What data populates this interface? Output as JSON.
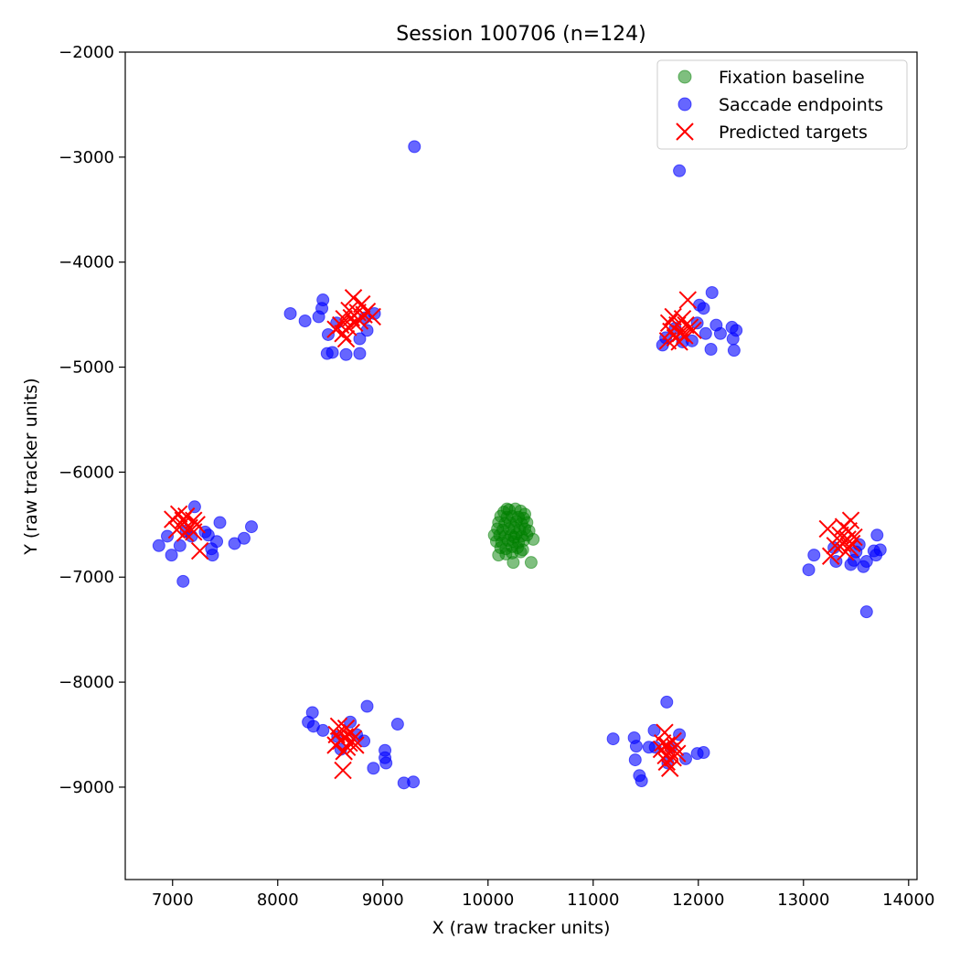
{
  "chart_data": {
    "type": "scatter",
    "title": "Session 100706 (n=124)",
    "xlabel": "X (raw tracker units)",
    "ylabel": "Y (raw tracker units)",
    "xlim": [
      6550,
      14080
    ],
    "ylim": [
      -2000,
      -9880
    ],
    "xticks": [
      7000,
      8000,
      9000,
      10000,
      11000,
      12000,
      13000,
      14000
    ],
    "yticks": [
      -2000,
      -3000,
      -4000,
      -5000,
      -6000,
      -7000,
      -8000,
      -9000
    ],
    "xtick_labels": [
      "7000",
      "8000",
      "9000",
      "10000",
      "11000",
      "12000",
      "13000",
      "14000"
    ],
    "ytick_labels": [
      "−2000",
      "−3000",
      "−4000",
      "−5000",
      "−6000",
      "−7000",
      "−8000",
      "−9000"
    ],
    "grid": false,
    "legend_position": "top-right",
    "series": [
      {
        "name": "Fixation baseline",
        "marker": "circle",
        "color": "#008000",
        "alpha": 0.5,
        "points": [
          [
            10150,
            -6380
          ],
          [
            10200,
            -6360
          ],
          [
            10260,
            -6350
          ],
          [
            10310,
            -6370
          ],
          [
            10350,
            -6400
          ],
          [
            10120,
            -6420
          ],
          [
            10180,
            -6430
          ],
          [
            10230,
            -6420
          ],
          [
            10290,
            -6430
          ],
          [
            10340,
            -6440
          ],
          [
            10100,
            -6480
          ],
          [
            10160,
            -6490
          ],
          [
            10210,
            -6480
          ],
          [
            10270,
            -6470
          ],
          [
            10320,
            -6490
          ],
          [
            10370,
            -6480
          ],
          [
            10090,
            -6540
          ],
          [
            10140,
            -6550
          ],
          [
            10200,
            -6540
          ],
          [
            10250,
            -6530
          ],
          [
            10300,
            -6550
          ],
          [
            10350,
            -6540
          ],
          [
            10390,
            -6560
          ],
          [
            10110,
            -6600
          ],
          [
            10160,
            -6610
          ],
          [
            10220,
            -6600
          ],
          [
            10270,
            -6590
          ],
          [
            10320,
            -6610
          ],
          [
            10370,
            -6600
          ],
          [
            10080,
            -6660
          ],
          [
            10130,
            -6670
          ],
          [
            10190,
            -6650
          ],
          [
            10240,
            -6660
          ],
          [
            10290,
            -6670
          ],
          [
            10340,
            -6650
          ],
          [
            10430,
            -6640
          ],
          [
            10120,
            -6720
          ],
          [
            10170,
            -6730
          ],
          [
            10230,
            -6710
          ],
          [
            10280,
            -6720
          ],
          [
            10330,
            -6740
          ],
          [
            10100,
            -6790
          ],
          [
            10170,
            -6780
          ],
          [
            10230,
            -6770
          ],
          [
            10310,
            -6760
          ],
          [
            10240,
            -6860
          ],
          [
            10410,
            -6860
          ],
          [
            10060,
            -6600
          ],
          [
            10180,
            -6350
          ],
          [
            10250,
            -6620
          ]
        ]
      },
      {
        "name": "Saccade endpoints",
        "marker": "circle",
        "color": "#0000ff",
        "alpha": 0.6,
        "points": [
          [
            9300,
            -2900
          ],
          [
            11820,
            -3130
          ],
          [
            8120,
            -4490
          ],
          [
            8260,
            -4560
          ],
          [
            8390,
            -4520
          ],
          [
            8420,
            -4440
          ],
          [
            8430,
            -4360
          ],
          [
            8480,
            -4690
          ],
          [
            8470,
            -4870
          ],
          [
            8520,
            -4860
          ],
          [
            8560,
            -4580
          ],
          [
            8650,
            -4880
          ],
          [
            8780,
            -4870
          ],
          [
            8780,
            -4730
          ],
          [
            8830,
            -4530
          ],
          [
            8850,
            -4650
          ],
          [
            8920,
            -4490
          ],
          [
            11660,
            -4790
          ],
          [
            11690,
            -4720
          ],
          [
            11780,
            -4630
          ],
          [
            11850,
            -4760
          ],
          [
            11940,
            -4750
          ],
          [
            11990,
            -4580
          ],
          [
            12010,
            -4410
          ],
          [
            12050,
            -4440
          ],
          [
            12070,
            -4680
          ],
          [
            12120,
            -4830
          ],
          [
            12130,
            -4290
          ],
          [
            12170,
            -4600
          ],
          [
            12210,
            -4680
          ],
          [
            12320,
            -4620
          ],
          [
            12330,
            -4730
          ],
          [
            12340,
            -4840
          ],
          [
            12360,
            -4650
          ],
          [
            6870,
            -6700
          ],
          [
            6950,
            -6610
          ],
          [
            6990,
            -6790
          ],
          [
            7070,
            -6700
          ],
          [
            7100,
            -7040
          ],
          [
            7130,
            -6560
          ],
          [
            7180,
            -6610
          ],
          [
            7210,
            -6330
          ],
          [
            7310,
            -6570
          ],
          [
            7340,
            -6600
          ],
          [
            7370,
            -6730
          ],
          [
            7380,
            -6790
          ],
          [
            7420,
            -6660
          ],
          [
            7450,
            -6480
          ],
          [
            7590,
            -6680
          ],
          [
            7680,
            -6630
          ],
          [
            7750,
            -6520
          ],
          [
            13050,
            -6930
          ],
          [
            13100,
            -6790
          ],
          [
            13290,
            -6720
          ],
          [
            13310,
            -6850
          ],
          [
            13450,
            -6880
          ],
          [
            13480,
            -6840
          ],
          [
            13500,
            -6760
          ],
          [
            13530,
            -6690
          ],
          [
            13570,
            -6900
          ],
          [
            13600,
            -6850
          ],
          [
            13600,
            -7330
          ],
          [
            13670,
            -6750
          ],
          [
            13690,
            -6790
          ],
          [
            13700,
            -6600
          ],
          [
            13730,
            -6740
          ],
          [
            8290,
            -8380
          ],
          [
            8330,
            -8290
          ],
          [
            8340,
            -8420
          ],
          [
            8430,
            -8460
          ],
          [
            8570,
            -8520
          ],
          [
            8600,
            -8640
          ],
          [
            8690,
            -8380
          ],
          [
            8750,
            -8500
          ],
          [
            8820,
            -8560
          ],
          [
            8850,
            -8230
          ],
          [
            8910,
            -8820
          ],
          [
            9020,
            -8650
          ],
          [
            9020,
            -8720
          ],
          [
            9030,
            -8770
          ],
          [
            9140,
            -8400
          ],
          [
            9200,
            -8960
          ],
          [
            9290,
            -8950
          ],
          [
            11190,
            -8540
          ],
          [
            11390,
            -8530
          ],
          [
            11400,
            -8740
          ],
          [
            11410,
            -8610
          ],
          [
            11440,
            -8890
          ],
          [
            11460,
            -8940
          ],
          [
            11530,
            -8620
          ],
          [
            11580,
            -8460
          ],
          [
            11590,
            -8620
          ],
          [
            11700,
            -8190
          ],
          [
            11710,
            -8770
          ],
          [
            11740,
            -8620
          ],
          [
            11820,
            -8500
          ],
          [
            11880,
            -8730
          ],
          [
            11990,
            -8680
          ],
          [
            12050,
            -8670
          ]
        ]
      },
      {
        "name": "Predicted targets",
        "marker": "x",
        "color": "#ff0000",
        "alpha": 1.0,
        "points": [
          [
            8720,
            -4340
          ],
          [
            8800,
            -4400
          ],
          [
            8680,
            -4460
          ],
          [
            8760,
            -4480
          ],
          [
            8850,
            -4470
          ],
          [
            8900,
            -4520
          ],
          [
            8700,
            -4530
          ],
          [
            8630,
            -4540
          ],
          [
            8780,
            -4560
          ],
          [
            8600,
            -4600
          ],
          [
            8670,
            -4620
          ],
          [
            8730,
            -4580
          ],
          [
            8620,
            -4680
          ],
          [
            8550,
            -4640
          ],
          [
            8650,
            -4730
          ],
          [
            8820,
            -4500
          ],
          [
            11900,
            -4360
          ],
          [
            11760,
            -4520
          ],
          [
            11850,
            -4540
          ],
          [
            11720,
            -4580
          ],
          [
            11800,
            -4600
          ],
          [
            11880,
            -4600
          ],
          [
            11950,
            -4650
          ],
          [
            11740,
            -4660
          ],
          [
            11830,
            -4680
          ],
          [
            11780,
            -4720
          ],
          [
            11870,
            -4700
          ],
          [
            11710,
            -4750
          ],
          [
            11820,
            -4760
          ],
          [
            11920,
            -4620
          ],
          [
            7000,
            -6450
          ],
          [
            7060,
            -6400
          ],
          [
            7130,
            -6420
          ],
          [
            7200,
            -6460
          ],
          [
            7090,
            -6500
          ],
          [
            7160,
            -6530
          ],
          [
            7040,
            -6550
          ],
          [
            7120,
            -6580
          ],
          [
            7200,
            -6570
          ],
          [
            7260,
            -6750
          ],
          [
            7230,
            -6500
          ],
          [
            7100,
            -6460
          ],
          [
            13450,
            -6460
          ],
          [
            13380,
            -6520
          ],
          [
            13230,
            -6540
          ],
          [
            13430,
            -6560
          ],
          [
            13350,
            -6600
          ],
          [
            13420,
            -6640
          ],
          [
            13480,
            -6620
          ],
          [
            13370,
            -6680
          ],
          [
            13300,
            -6700
          ],
          [
            13440,
            -6720
          ],
          [
            13260,
            -6800
          ],
          [
            13400,
            -6760
          ],
          [
            13460,
            -6680
          ],
          [
            8580,
            -8420
          ],
          [
            8650,
            -8440
          ],
          [
            8700,
            -8480
          ],
          [
            8560,
            -8500
          ],
          [
            8640,
            -8520
          ],
          [
            8720,
            -8540
          ],
          [
            8600,
            -8560
          ],
          [
            8680,
            -8580
          ],
          [
            8550,
            -8600
          ],
          [
            8660,
            -8620
          ],
          [
            8740,
            -8600
          ],
          [
            8630,
            -8660
          ],
          [
            8620,
            -8840
          ],
          [
            11680,
            -8480
          ],
          [
            11760,
            -8560
          ],
          [
            11700,
            -8600
          ],
          [
            11780,
            -8620
          ],
          [
            11650,
            -8640
          ],
          [
            11730,
            -8660
          ],
          [
            11800,
            -8680
          ],
          [
            11690,
            -8700
          ],
          [
            11760,
            -8720
          ],
          [
            11700,
            -8760
          ],
          [
            11730,
            -8820
          ],
          [
            11660,
            -8580
          ]
        ]
      }
    ]
  }
}
